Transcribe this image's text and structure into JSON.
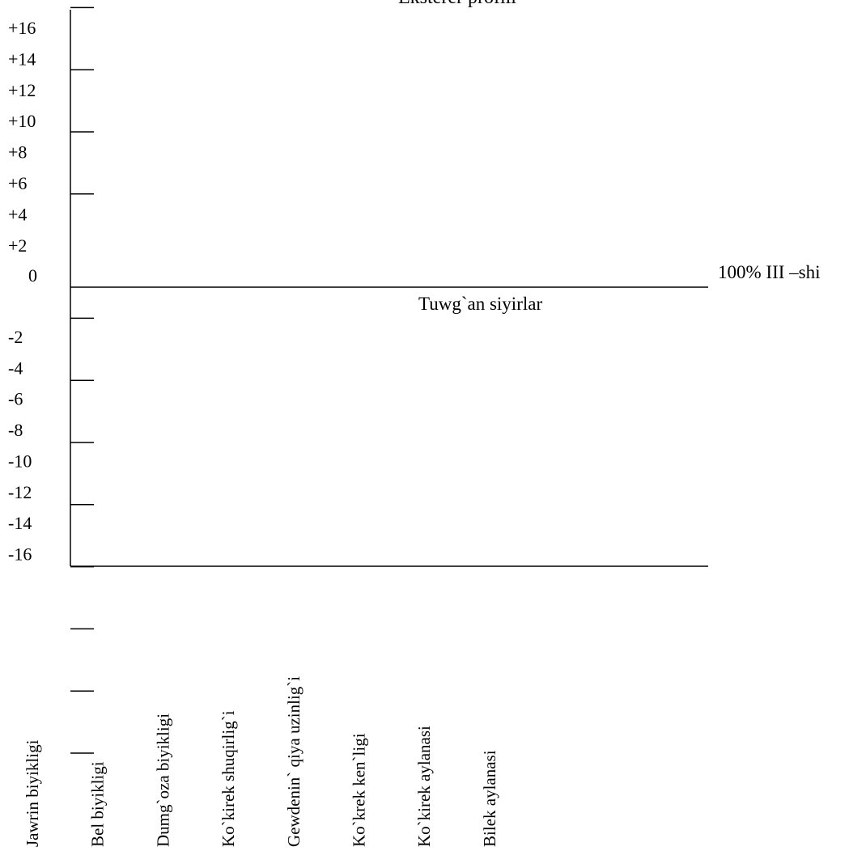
{
  "chart_data": {
    "type": "line",
    "title": "Eksterer  profili",
    "baseline_label": "100% III –shi",
    "annotation": "Tuwg`an   siyirlar",
    "categories": [
      "Jawrin  biyikligi",
      "Bel biyikligi",
      "Dumg`oza biyikligi",
      "Ko`kirek shuqirlig`i",
      "Gewdenin` qiya uzinlig`i",
      "Ko`krek ken`ligi",
      "Ko`kirek aylanasi",
      "Bilek aylanasi"
    ],
    "yticks": [
      {
        "value": 16,
        "label": "+16"
      },
      {
        "value": 14,
        "label": "+14"
      },
      {
        "value": 12,
        "label": "+12"
      },
      {
        "value": 10,
        "label": "+10"
      },
      {
        "value": 8,
        "label": "+8"
      },
      {
        "value": 6,
        "label": "+6"
      },
      {
        "value": 4,
        "label": "+4"
      },
      {
        "value": 2,
        "label": "+2"
      },
      {
        "value": 0,
        "label": "0"
      },
      {
        "value": -2,
        "label": "-2"
      },
      {
        "value": -4,
        "label": "-4"
      },
      {
        "value": -6,
        "label": "-6"
      },
      {
        "value": -8,
        "label": "-8"
      },
      {
        "value": -10,
        "label": "-10"
      },
      {
        "value": -12,
        "label": "-12"
      },
      {
        "value": -14,
        "label": "-14"
      },
      {
        "value": -16,
        "label": "-16"
      }
    ],
    "ylim": [
      -16,
      16
    ],
    "series": [],
    "grid": false
  }
}
